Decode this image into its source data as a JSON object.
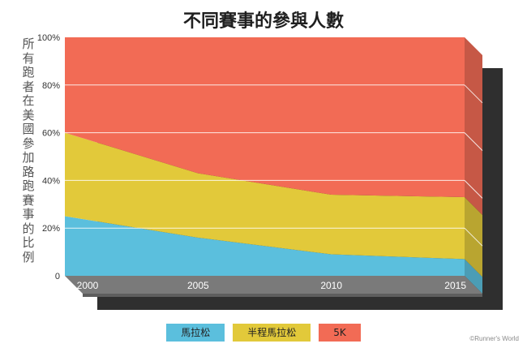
{
  "chart_data": {
    "type": "area",
    "stacked": true,
    "percent_stacked": true,
    "title": "不同賽事的參與人數",
    "ylabel": "所有跑者在美國參加路跑賽事的比例",
    "xlabel": "",
    "x": [
      2000,
      2005,
      2010,
      2015
    ],
    "x_tick_labels": [
      "2000",
      "2005",
      "2010",
      "2015"
    ],
    "y_tick_labels": [
      "0",
      "20%",
      "40%",
      "60%",
      "80%",
      "100%"
    ],
    "ylim": [
      0,
      100
    ],
    "grid": true,
    "legend_position": "bottom",
    "series": [
      {
        "name": "馬拉松",
        "color": "#5bbfdd",
        "values": [
          25,
          16,
          9,
          7
        ]
      },
      {
        "name": "半程馬拉松",
        "color": "#e2c93a",
        "values": [
          35,
          27,
          25,
          26
        ]
      },
      {
        "name": "5K",
        "color": "#f26b55",
        "values": [
          40,
          57,
          66,
          67
        ]
      }
    ],
    "credit": "©Runner's World"
  }
}
